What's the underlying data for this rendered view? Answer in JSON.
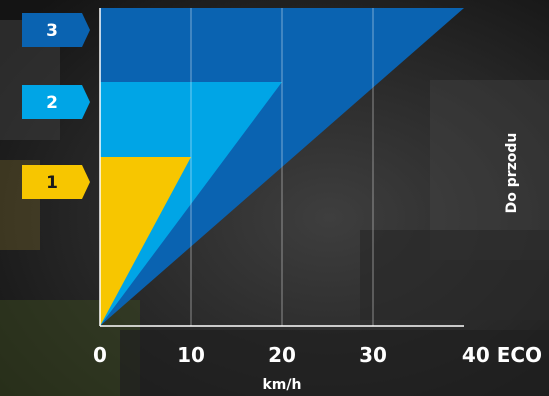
{
  "chart_data": {
    "type": "area",
    "xlabel": "km/h",
    "ylabel": "Do przodu",
    "x_ticks": [
      "0",
      "10",
      "20",
      "30",
      "40 ECO"
    ],
    "xlim": [
      0,
      40
    ],
    "grid": true,
    "gears": [
      {
        "label": "1",
        "max_speed": 10,
        "color": "#f7c600"
      },
      {
        "label": "2",
        "max_speed": 20,
        "color": "#00a5e6"
      },
      {
        "label": "3",
        "max_speed": 40,
        "color": "#0a63b1"
      }
    ]
  },
  "colors": {
    "gear1": "#f7c600",
    "gear2": "#00a5e6",
    "gear3": "#0a63b1",
    "label_text": "#ffffff",
    "gear1_text": "#1a1a1a"
  }
}
